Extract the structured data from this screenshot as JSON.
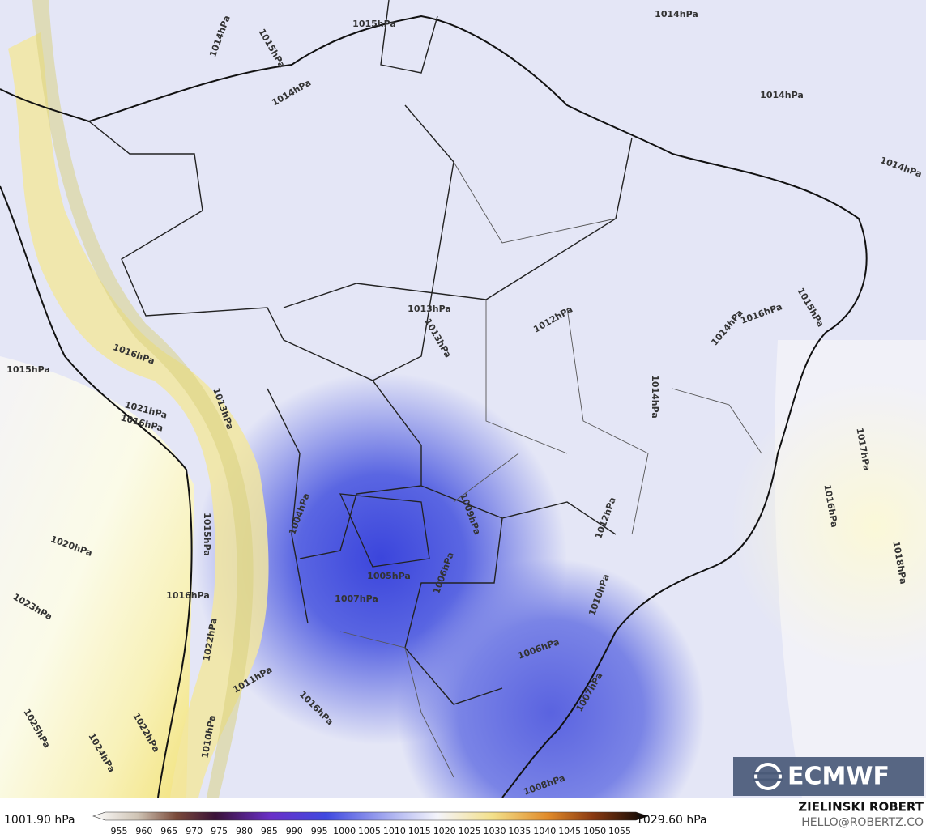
{
  "map": {
    "isobar_labels": [
      "1014hPa",
      "1015hPa",
      "1015hPa",
      "1014hPa",
      "1014hPa",
      "1014hPa",
      "1014hPa",
      "1013hPa",
      "1013hPa",
      "1012hPa",
      "1014hPa",
      "1016hPa",
      "1015hPa",
      "1015hPa",
      "1016hPa",
      "1013hPa",
      "1021hPa",
      "1016hPa",
      "1014hPa",
      "1017hPa",
      "1016hPa",
      "1018hPa",
      "1009hPa",
      "1012hPa",
      "1004hPa",
      "1015hPa",
      "1020hPa",
      "1005hPa",
      "1006hPa",
      "1007hPa",
      "1016hPa",
      "1010hPa",
      "1023hPa",
      "1022hPa",
      "1006hPa",
      "1011hPa",
      "1007hPa",
      "1016hPa",
      "1025hPa",
      "1022hPa",
      "1024hPa",
      "1010hPa",
      "1008hPa"
    ]
  },
  "colorbar": {
    "min_label": "1001.90 hPa",
    "max_label": "1029.60 hPa",
    "ticks": [
      955,
      960,
      965,
      970,
      975,
      980,
      985,
      990,
      995,
      1000,
      1005,
      1010,
      1015,
      1020,
      1025,
      1030,
      1035,
      1040,
      1045,
      1050,
      1055
    ]
  },
  "credits": {
    "author": "ZIELINSKI ROBERT",
    "email": "HELLO@ROBERTZ.CO"
  },
  "logo": "ECMWF"
}
